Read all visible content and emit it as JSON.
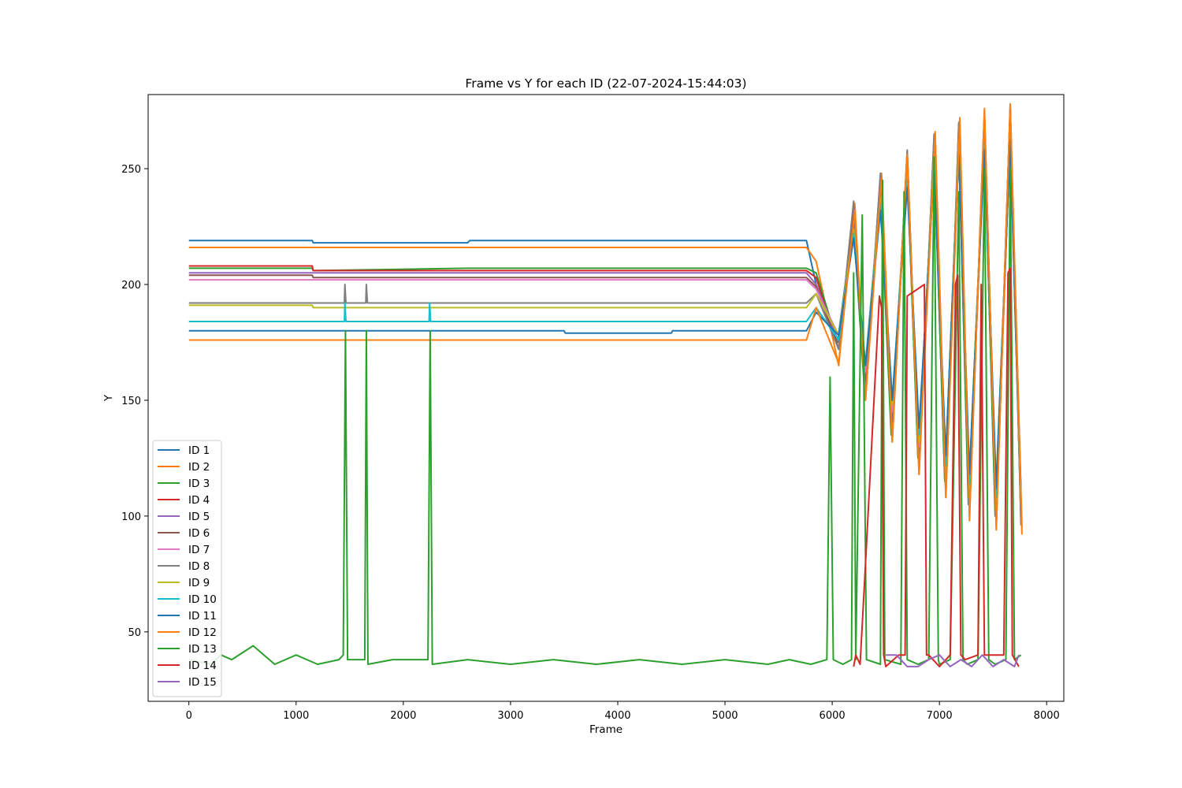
{
  "chart_data": {
    "type": "line",
    "title": "Frame vs Y for each ID (22-07-2024-15:44:03)",
    "xlabel": "Frame",
    "ylabel": "Y",
    "xlim": [
      -380,
      8160
    ],
    "ylim": [
      20,
      282
    ],
    "xticks": [
      0,
      1000,
      2000,
      3000,
      4000,
      5000,
      6000,
      7000,
      8000
    ],
    "xtick_labels": [
      "0",
      "1000",
      "2000",
      "3000",
      "4000",
      "5000",
      "6000",
      "7000",
      "8000"
    ],
    "yticks": [
      50,
      100,
      150,
      200,
      250
    ],
    "ytick_labels": [
      "50",
      "100",
      "150",
      "200",
      "250"
    ],
    "grid": false,
    "legend_position": "lower-left",
    "series": [
      {
        "name": "ID 1",
        "color": "#1f77b4",
        "x": [
          0,
          1150,
          1160,
          2600,
          2620,
          5760,
          5850,
          6050,
          6200,
          6300,
          6450,
          6550,
          6700,
          6800,
          6950,
          7050,
          7180,
          7270,
          7420,
          7520,
          7660,
          7760
        ],
        "y": [
          219,
          219,
          218,
          218,
          219,
          219,
          200,
          175,
          228,
          160,
          240,
          140,
          250,
          125,
          256,
          115,
          262,
          105,
          265,
          100,
          262,
          100
        ]
      },
      {
        "name": "ID 2",
        "color": "#ff7f0e",
        "x": [
          0,
          5760,
          5850,
          6060,
          6210,
          6310,
          6460,
          6560,
          6700,
          6810,
          6960,
          7060,
          7190,
          7280,
          7420,
          7530,
          7660,
          7770
        ],
        "y": [
          216,
          216,
          210,
          165,
          235,
          150,
          248,
          135,
          258,
          120,
          266,
          110,
          272,
          100,
          276,
          95,
          278,
          95
        ]
      },
      {
        "name": "ID 3",
        "color": "#2ca02c",
        "x": [
          0,
          1150,
          1160,
          2600,
          5760,
          5850,
          6050,
          6200,
          6300,
          6450,
          6550,
          6700,
          6800,
          6950,
          7050,
          7180,
          7270,
          7420,
          7520,
          7660,
          7760
        ],
        "y": [
          207,
          207,
          206,
          207,
          207,
          205,
          175,
          225,
          155,
          240,
          135,
          250,
          125,
          256,
          115,
          260,
          108,
          262,
          103,
          262,
          103
        ]
      },
      {
        "name": "ID 4",
        "color": "#d62728",
        "x": [
          0,
          1150,
          1160,
          5760,
          5850,
          6060,
          6200,
          6310,
          6450,
          6560,
          6700,
          6810,
          6950,
          7060,
          7180,
          7280,
          7420,
          7530,
          7660,
          7760
        ],
        "y": [
          208,
          208,
          206,
          206,
          203,
          172,
          230,
          158,
          243,
          138,
          252,
          125,
          258,
          115,
          263,
          106,
          266,
          100,
          266,
          100
        ]
      },
      {
        "name": "ID 5",
        "color": "#9467bd",
        "x": [
          0,
          5760,
          5850,
          6060,
          6200,
          6310,
          6450,
          6560,
          6700,
          6810,
          6950,
          7060,
          7180,
          7280,
          7420,
          7530,
          7660,
          7760
        ],
        "y": [
          205,
          205,
          200,
          175,
          225,
          160,
          240,
          140,
          250,
          128,
          256,
          118,
          262,
          110,
          266,
          104,
          268,
          104
        ]
      },
      {
        "name": "ID 6",
        "color": "#8c564b",
        "x": [
          0,
          1150,
          1160,
          5760,
          5850,
          6060,
          6200,
          6310,
          6450,
          6560,
          6700,
          6810,
          6950,
          7060,
          7180,
          7280,
          7420,
          7530,
          7660,
          7760
        ],
        "y": [
          204,
          204,
          203,
          203,
          199,
          172,
          235,
          155,
          247,
          135,
          257,
          120,
          264,
          110,
          269,
          102,
          273,
          98,
          276,
          98
        ]
      },
      {
        "name": "ID 7",
        "color": "#e377c2",
        "x": [
          0,
          5760,
          5850,
          6060,
          6200,
          6310,
          6450,
          6560,
          6700,
          6810,
          6950,
          7060,
          7180,
          7280,
          7420,
          7530,
          7660,
          7760
        ],
        "y": [
          202,
          202,
          198,
          178,
          222,
          162,
          238,
          145,
          248,
          130,
          255,
          118,
          262,
          110,
          266,
          104,
          270,
          104
        ]
      },
      {
        "name": "ID 8",
        "color": "#7f7f7f",
        "x": [
          0,
          1450,
          1455,
          1465,
          1650,
          1655,
          1665,
          5760,
          5850,
          6060,
          6200,
          6310,
          6450,
          6560,
          6700,
          6810,
          6950,
          7060,
          7180,
          7280,
          7420,
          7530,
          7660,
          7760
        ],
        "y": [
          192,
          192,
          200,
          192,
          192,
          200,
          192,
          192,
          196,
          172,
          236,
          152,
          248,
          132,
          258,
          118,
          265,
          108,
          270,
          100,
          274,
          96,
          277,
          96
        ]
      },
      {
        "name": "ID 9",
        "color": "#bcbd22",
        "x": [
          0,
          1150,
          1160,
          5760,
          5850,
          6060,
          6200,
          6310,
          6450,
          6560,
          6700,
          6810,
          6950,
          7060,
          7180,
          7280,
          7420,
          7530,
          7660,
          7760
        ],
        "y": [
          191,
          191,
          190,
          190,
          196,
          178,
          224,
          165,
          238,
          148,
          248,
          132,
          256,
          120,
          262,
          112,
          266,
          106,
          268,
          106
        ]
      },
      {
        "name": "ID 10",
        "color": "#17becf",
        "x": [
          0,
          1450,
          1455,
          1465,
          2240,
          2245,
          2255,
          5760,
          5850,
          6060,
          6200,
          6310,
          6450,
          6560,
          6700,
          6810,
          6950,
          7060,
          7180,
          7280,
          7420,
          7530,
          7660,
          7760
        ],
        "y": [
          184,
          184,
          192,
          184,
          184,
          192,
          184,
          184,
          190,
          176,
          222,
          165,
          235,
          150,
          245,
          135,
          252,
          122,
          258,
          114,
          262,
          108,
          265,
          108
        ]
      },
      {
        "name": "ID 11",
        "color": "#1f77b4",
        "x": [
          0,
          3500,
          3510,
          4500,
          4510,
          5760,
          5850,
          6060,
          6200,
          6310,
          6450,
          6560,
          6700,
          6810,
          6950,
          7060,
          7180,
          7280,
          7420,
          7530,
          7660,
          7760
        ],
        "y": [
          180,
          180,
          179,
          179,
          180,
          180,
          188,
          178,
          220,
          165,
          232,
          150,
          242,
          138,
          250,
          126,
          256,
          118,
          258,
          112,
          262,
          112
        ]
      },
      {
        "name": "ID 12",
        "color": "#ff7f0e",
        "x": [
          0,
          5760,
          5850,
          6060,
          6210,
          6310,
          6460,
          6560,
          6700,
          6810,
          6960,
          7060,
          7190,
          7280,
          7420,
          7530,
          7660,
          7770
        ],
        "y": [
          176,
          176,
          190,
          166,
          232,
          150,
          246,
          132,
          256,
          118,
          265,
          108,
          271,
          98,
          275,
          94,
          277,
          92
        ]
      },
      {
        "name": "ID 13",
        "color": "#2ca02c",
        "x": [
          0,
          200,
          300,
          400,
          600,
          800,
          1000,
          1200,
          1400,
          1440,
          1460,
          1480,
          1640,
          1655,
          1670,
          1900,
          2230,
          2250,
          2270,
          2600,
          3000,
          3400,
          3800,
          4200,
          4600,
          5000,
          5400,
          5600,
          5800,
          5950,
          5980,
          6010,
          6100,
          6180,
          6200,
          6220,
          6280,
          6320,
          6450,
          6470,
          6490,
          6640,
          6670,
          6700,
          6800,
          6900,
          6950,
          6990,
          7000,
          7100,
          7180,
          7220,
          7260,
          7360,
          7420,
          7460,
          7520,
          7620,
          7660,
          7700,
          7760
        ],
        "y": [
          38,
          36,
          40,
          38,
          44,
          36,
          40,
          36,
          38,
          40,
          180,
          38,
          38,
          180,
          36,
          38,
          38,
          180,
          36,
          38,
          36,
          38,
          36,
          38,
          36,
          38,
          36,
          38,
          36,
          38,
          160,
          38,
          36,
          38,
          205,
          38,
          230,
          38,
          36,
          245,
          38,
          36,
          240,
          38,
          36,
          38,
          255,
          38,
          36,
          38,
          240,
          38,
          36,
          38,
          250,
          38,
          36,
          38,
          250,
          38,
          40
        ]
      },
      {
        "name": "ID 14",
        "color": "#d62728",
        "x": [
          6200,
          6220,
          6260,
          6300,
          6440,
          6460,
          6480,
          6500,
          6620,
          6680,
          6700,
          6860,
          6880,
          6900,
          7000,
          7100,
          7150,
          7170,
          7200,
          7240,
          7360,
          7390,
          7420,
          7600,
          7640,
          7660,
          7680,
          7740
        ],
        "y": [
          35,
          40,
          36,
          70,
          195,
          190,
          40,
          35,
          40,
          40,
          195,
          200,
          40,
          40,
          35,
          40,
          200,
          204,
          40,
          38,
          40,
          200,
          40,
          40,
          205,
          207,
          40,
          35
        ]
      },
      {
        "name": "ID 15",
        "color": "#9467bd",
        "x": [
          6500,
          6600,
          6700,
          6800,
          6900,
          7000,
          7100,
          7200,
          7300,
          7400,
          7500,
          7600,
          7700,
          7740
        ],
        "y": [
          40,
          40,
          35,
          35,
          38,
          40,
          35,
          38,
          35,
          40,
          35,
          38,
          35,
          40
        ]
      }
    ]
  }
}
